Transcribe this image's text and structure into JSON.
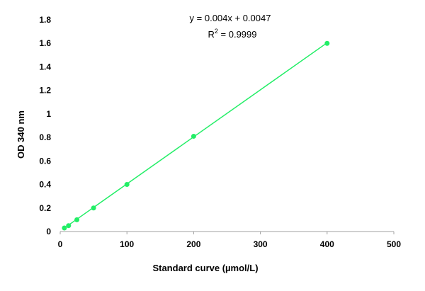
{
  "chart_data": {
    "type": "scatter",
    "title": "",
    "xlabel": "Standard curve (µmol/L)",
    "ylabel": "OD 340 nm",
    "xlim": [
      0,
      500
    ],
    "ylim": [
      0,
      1.8
    ],
    "x_ticks": [
      0,
      100,
      200,
      300,
      400,
      500
    ],
    "x_tick_labels": [
      "0",
      "100",
      "200",
      "300",
      "400",
      "500"
    ],
    "y_ticks": [
      0,
      0.2,
      0.4,
      0.6,
      0.8,
      1,
      1.2,
      1.4,
      1.6,
      1.8
    ],
    "y_tick_labels": [
      "0",
      "0.2",
      "0.4",
      "0.6",
      "0.8",
      "1",
      "1.2",
      "1.4",
      "1.6",
      "1.8"
    ],
    "grid": false,
    "legend": "none",
    "series": [
      {
        "x": [
          6.25,
          12.5,
          25,
          50,
          100,
          200,
          400
        ],
        "y": [
          0.03,
          0.05,
          0.1,
          0.2,
          0.4,
          0.81,
          1.6
        ],
        "color": "#22ee66"
      }
    ],
    "trendline": {
      "slope": 0.004,
      "intercept": 0.0047,
      "x_range": [
        6.25,
        400
      ],
      "color": "#22ee66"
    },
    "annotations": {
      "equation": "y = 0.004x + 0.0047",
      "r2_prefix": "R",
      "r2_sup": "2",
      "r2_value": " = 0.9999"
    }
  }
}
